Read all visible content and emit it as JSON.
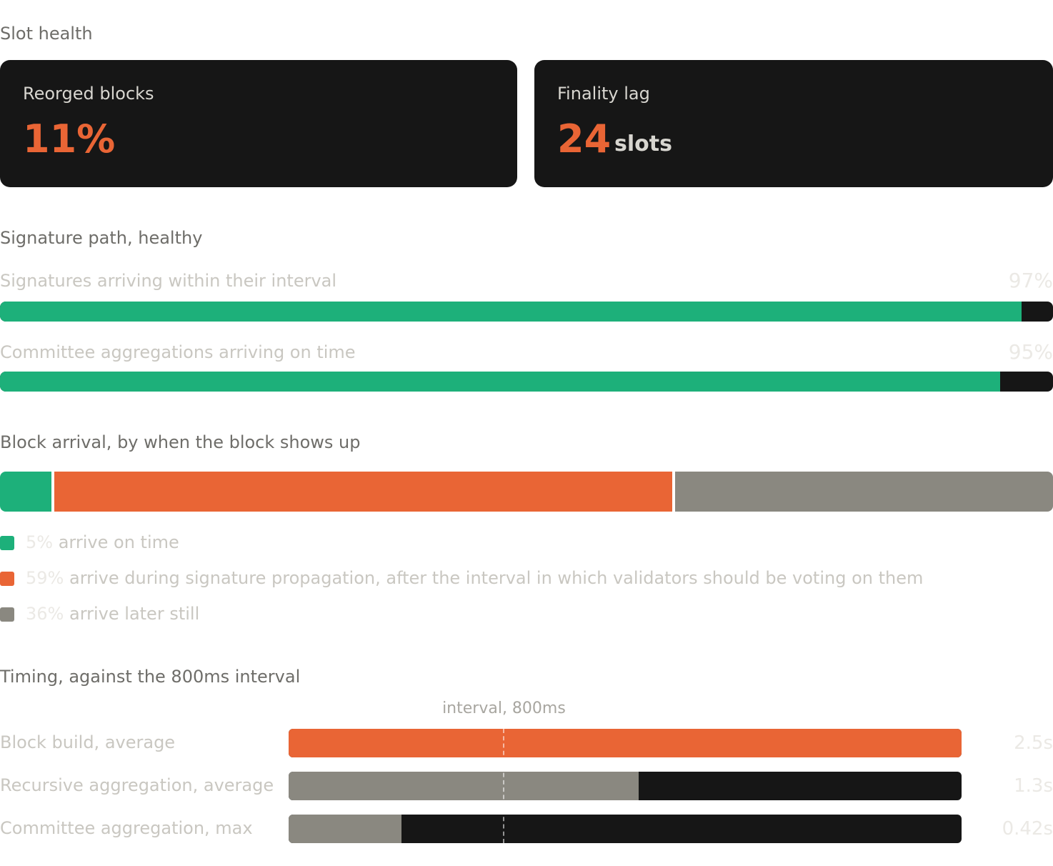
{
  "slot_health": {
    "title": "Slot health",
    "cards": [
      {
        "label": "Reorged blocks",
        "value": "11%"
      },
      {
        "label": "Finality lag",
        "value": "24",
        "unit": "slots"
      }
    ]
  },
  "signature_path": {
    "title": "Signature path, healthy",
    "xlim": [
      0,
      100
    ],
    "bars": [
      {
        "label": "Signatures arriving within their interval",
        "value": 97,
        "value_label": "97%",
        "color": "#1db07a"
      },
      {
        "label": "Committee aggregations arriving on time",
        "value": 95,
        "value_label": "95%",
        "color": "#1db07a"
      }
    ]
  },
  "block_arrival": {
    "title": "Block arrival, by when the block shows up",
    "segments": [
      {
        "value": 5,
        "value_label": "5%",
        "label": "arrive on time",
        "color": "#1db07a"
      },
      {
        "value": 59,
        "value_label": "59%",
        "label": "arrive during signature propagation, after the interval in which validators should be voting on them",
        "color": "#e96535"
      },
      {
        "value": 36,
        "value_label": "36%",
        "label": "arrive later still",
        "color": "#8a8880"
      }
    ]
  },
  "timing": {
    "title": "Timing, against the 800ms interval",
    "xlim": [
      0,
      2.5
    ],
    "marker": {
      "value": 0.8,
      "label": "interval, 800ms"
    },
    "rows": [
      {
        "label": "Block build, average",
        "value": 2.5,
        "value_label": "2.5s",
        "color": "#e96535"
      },
      {
        "label": "Recursive aggregation, average",
        "value": 1.3,
        "value_label": "1.3s",
        "color": "#8a8880"
      },
      {
        "label": "Committee aggregation, max",
        "value": 0.42,
        "value_label": "0.42s",
        "color": "#8a8880"
      }
    ]
  }
}
